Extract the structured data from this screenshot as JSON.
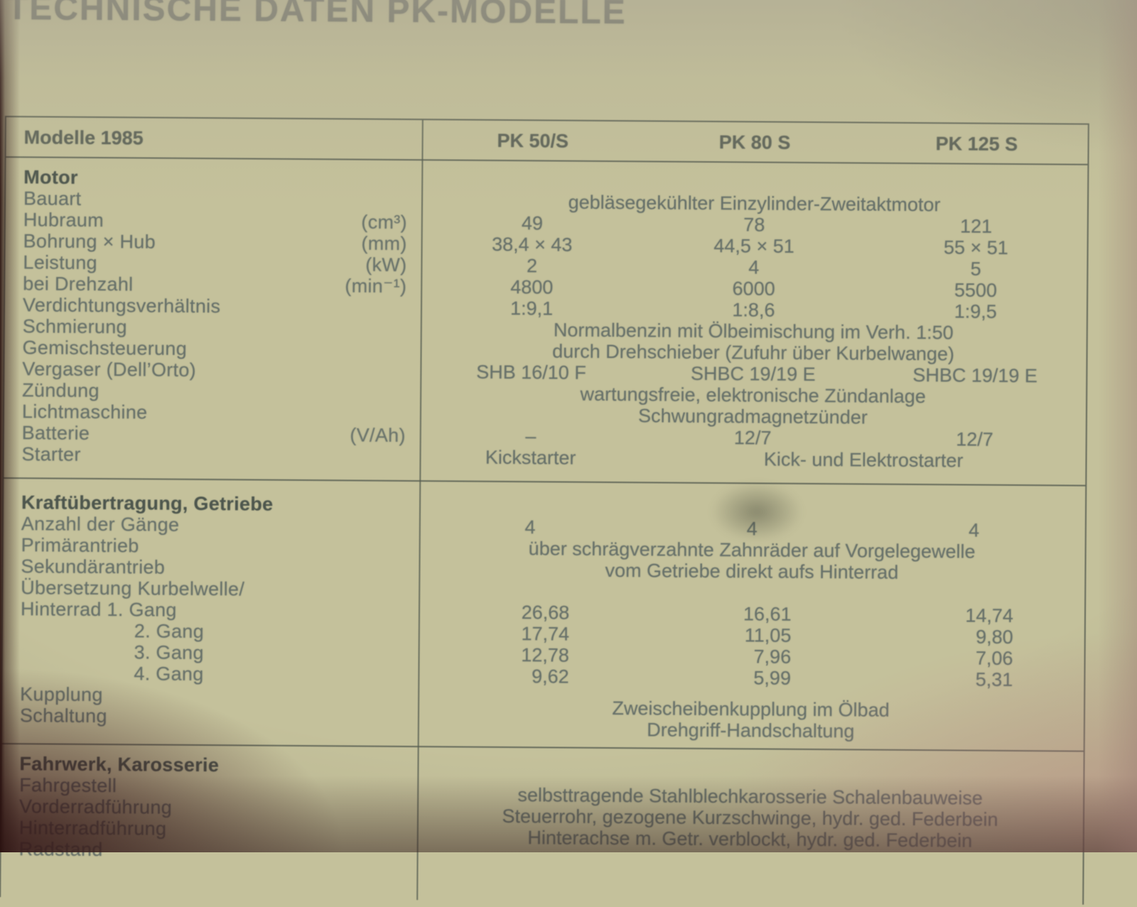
{
  "page_title": "TECHNISCHE DATEN PK-MODELLE",
  "colors": {
    "paper": "#c4c19b",
    "ink": "#67716a",
    "ink_bold": "#4d564d",
    "line": "#555c50",
    "title_ink": "#797b6f"
  },
  "table": {
    "header": {
      "label": "Modelle 1985",
      "columns": [
        "PK 50/S",
        "PK 80 S",
        "PK 125 S"
      ]
    },
    "sections": [
      {
        "title": "Motor",
        "rows": [
          {
            "label": "Bauart",
            "span_value": "gebläsegekühlter Einzylinder-Zweitaktmotor"
          },
          {
            "label": "Hubraum",
            "unit": "(cm³)",
            "values": [
              "49",
              "78",
              "121"
            ]
          },
          {
            "label": "Bohrung × Hub",
            "unit": "(mm)",
            "values": [
              "38,4 × 43",
              "44,5 × 51",
              "55 × 51"
            ]
          },
          {
            "label": "Leistung",
            "unit": "(kW)",
            "values": [
              "2",
              "4",
              "5"
            ]
          },
          {
            "label": "bei Drehzahl",
            "unit": "(min⁻¹)",
            "values": [
              "4800",
              "6000",
              "5500"
            ]
          },
          {
            "label": "Verdichtungsverhältnis",
            "values": [
              "1:9,1",
              "1:8,6",
              "1:9,5"
            ]
          },
          {
            "label": "Schmierung",
            "span_value": "Normalbenzin mit Ölbeimischung im Verh. 1:50"
          },
          {
            "label": "Gemischsteuerung",
            "span_value": "durch Drehschieber (Zufuhr über Kurbelwange)"
          },
          {
            "label": "Vergaser (Dell’Orto)",
            "values": [
              "SHB 16/10 F",
              "SHBC 19/19 E",
              "SHBC 19/19 E"
            ]
          },
          {
            "label": "Zündung",
            "span_value": "wartungsfreie, elektronische Zündanlage"
          },
          {
            "label": "Lichtmaschine",
            "span_value": "Schwungradmagnetzünder"
          },
          {
            "label": "Batterie",
            "unit": "(V/Ah)",
            "values": [
              "–",
              "12/7",
              "12/7"
            ]
          },
          {
            "label": "Starter",
            "col1_value": "Kickstarter",
            "col23_value": "Kick- und Elektrostarter"
          }
        ]
      },
      {
        "title": "Kraftübertragung, Getriebe",
        "rows": [
          {
            "label": "Anzahl der Gänge",
            "values": [
              "4",
              "4",
              "4"
            ]
          },
          {
            "label": "Primärantrieb",
            "span_value": "über schrägverzahnte Zahnräder auf Vorgelegewelle"
          },
          {
            "label": "Sekundärantrieb",
            "span_value": "vom Getriebe direkt aufs Hinterrad"
          },
          {
            "label": "Übersetzung Kurbelwelle/"
          },
          {
            "label": "Hinterrad 1. Gang",
            "values": [
              "26,68",
              "16,61",
              "14,74"
            ]
          },
          {
            "label": "2. Gang",
            "values": [
              "17,74",
              "11,05",
              "9,80"
            ]
          },
          {
            "label": "3. Gang",
            "values": [
              "12,78",
              "7,96",
              "7,06"
            ]
          },
          {
            "label": "4. Gang",
            "values": [
              "9,62",
              "5,99",
              "5,31"
            ]
          },
          {
            "label": "Kupplung",
            "span_value": "Zweischeibenkupplung im Ölbad"
          },
          {
            "label": "Schaltung",
            "span_value": "Drehgriff-Handschaltung"
          }
        ]
      },
      {
        "title": "Fahrwerk, Karosserie",
        "rows": [
          {
            "label": "Fahrgestell",
            "span_value": "selbsttragende Stahlblechkarosserie Schalenbauweise"
          },
          {
            "label": "Vorderradführung",
            "span_value": "Steuerrohr, gezogene Kurzschwinge, hydr. ged. Federbein"
          },
          {
            "label": "Hinterradführung",
            "span_value": "Hinterachse m. Getr. verblockt, hydr. ged. Federbein"
          },
          {
            "label": "Radstand"
          }
        ]
      }
    ]
  }
}
